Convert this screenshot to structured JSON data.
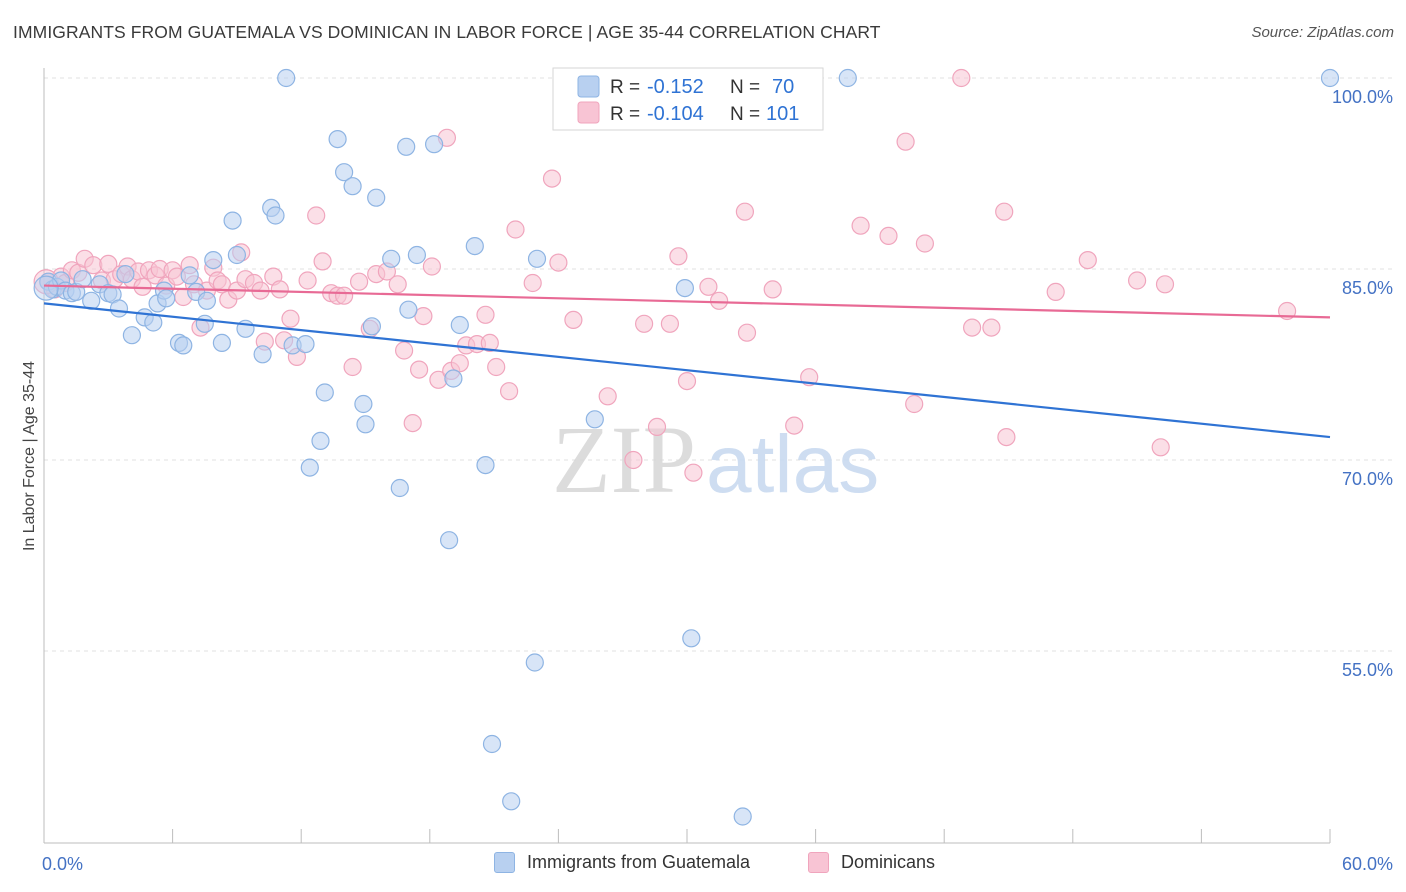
{
  "title": "IMMIGRANTS FROM GUATEMALA VS DOMINICAN IN LABOR FORCE | AGE 35-44 CORRELATION CHART",
  "source": "Source: ZipAtlas.com",
  "watermark": {
    "zip": "ZIP",
    "atlas": "atlas"
  },
  "colors": {
    "blue_fill": "#b8d0f0",
    "blue_stroke": "#8eb4e3",
    "blue_line": "#2f73d4",
    "pink_fill": "#f8c4d4",
    "pink_stroke": "#f0a5bd",
    "pink_line": "#e86a95",
    "axis_label": "#4472c4",
    "grid": "#e0e0e0"
  },
  "stats_legend": [
    {
      "r_label": "R =",
      "r_value": "-0.152",
      "n_label": "N =",
      "n_value": "70"
    },
    {
      "r_label": "R =",
      "r_value": "-0.104",
      "n_label": "N =",
      "n_value": "101"
    }
  ],
  "bottom_legend": [
    "Immigrants from Guatemala",
    "Dominicans"
  ],
  "chart_data": {
    "type": "scatter",
    "xlabel": "",
    "ylabel": "In Labor Force | Age 35-44",
    "xlim": [
      0,
      60
    ],
    "ylim": [
      40,
      103
    ],
    "x_tick_labels": [
      {
        "value": 0,
        "label": "0.0%"
      },
      {
        "value": 60,
        "label": "60.0%"
      }
    ],
    "y_tick_labels": [
      {
        "value": 100,
        "label": "100.0%"
      },
      {
        "value": 85,
        "label": "85.0%"
      },
      {
        "value": 70,
        "label": "70.0%"
      },
      {
        "value": 55,
        "label": "55.0%"
      }
    ],
    "x_minor_ticks": [
      6,
      12,
      18,
      24,
      30,
      36,
      42,
      48,
      54,
      60
    ],
    "grid": true,
    "series": [
      {
        "name": "Immigrants from Guatemala",
        "trend": [
          [
            0,
            82.3
          ],
          [
            60,
            71.8
          ]
        ],
        "points": [
          [
            0.2,
            84
          ],
          [
            0.4,
            83.4
          ],
          [
            0.6,
            83.6
          ],
          [
            0.8,
            84.1
          ],
          [
            1.0,
            83.3
          ],
          [
            1.3,
            83.1
          ],
          [
            1.5,
            83.2
          ],
          [
            1.8,
            84.2
          ],
          [
            2.2,
            82.5
          ],
          [
            2.6,
            83.8
          ],
          [
            3.0,
            83.1
          ],
          [
            3.2,
            83.0
          ],
          [
            3.5,
            81.9
          ],
          [
            3.8,
            84.6
          ],
          [
            4.1,
            79.8
          ],
          [
            4.7,
            81.2
          ],
          [
            5.1,
            80.8
          ],
          [
            5.3,
            82.3
          ],
          [
            5.6,
            83.3
          ],
          [
            5.7,
            82.7
          ],
          [
            6.3,
            79.2
          ],
          [
            6.5,
            79.0
          ],
          [
            6.8,
            84.5
          ],
          [
            7.1,
            83.2
          ],
          [
            7.5,
            80.7
          ],
          [
            7.6,
            82.5
          ],
          [
            7.9,
            85.7
          ],
          [
            8.3,
            79.2
          ],
          [
            8.8,
            88.8
          ],
          [
            9.0,
            86.1
          ],
          [
            9.4,
            80.3
          ],
          [
            10.2,
            78.3
          ],
          [
            10.6,
            89.8
          ],
          [
            10.8,
            89.2
          ],
          [
            11.3,
            100
          ],
          [
            11.6,
            79.0
          ],
          [
            12.2,
            79.1
          ],
          [
            12.4,
            69.4
          ],
          [
            12.9,
            71.5
          ],
          [
            13.1,
            75.3
          ],
          [
            13.7,
            95.2
          ],
          [
            14.0,
            92.6
          ],
          [
            14.4,
            91.5
          ],
          [
            14.9,
            74.4
          ],
          [
            15.0,
            72.8
          ],
          [
            15.3,
            80.5
          ],
          [
            15.5,
            90.6
          ],
          [
            16.2,
            85.8
          ],
          [
            16.6,
            67.8
          ],
          [
            16.9,
            94.6
          ],
          [
            17.0,
            81.8
          ],
          [
            17.4,
            86.1
          ],
          [
            18.2,
            94.8
          ],
          [
            18.9,
            63.7
          ],
          [
            19.1,
            76.4
          ],
          [
            19.4,
            80.6
          ],
          [
            20.1,
            86.8
          ],
          [
            20.6,
            69.6
          ],
          [
            20.9,
            47.7
          ],
          [
            21.8,
            43.2
          ],
          [
            22.9,
            54.1
          ],
          [
            23.0,
            85.8
          ],
          [
            25.7,
            73.2
          ],
          [
            29.9,
            83.5
          ],
          [
            30.2,
            56.0
          ],
          [
            32.6,
            42.0
          ],
          [
            37.5,
            100
          ],
          [
            60.0,
            100
          ]
        ]
      },
      {
        "name": "Dominicans",
        "trend": [
          [
            0,
            83.7
          ],
          [
            60,
            81.2
          ]
        ],
        "points": [
          [
            0.2,
            84.0
          ],
          [
            0.5,
            83.4
          ],
          [
            0.8,
            84.4
          ],
          [
            1.0,
            83.9
          ],
          [
            1.3,
            84.9
          ],
          [
            1.6,
            84.7
          ],
          [
            1.9,
            85.8
          ],
          [
            2.3,
            85.3
          ],
          [
            2.7,
            84.1
          ],
          [
            3.0,
            85.4
          ],
          [
            3.3,
            84.2
          ],
          [
            3.6,
            84.6
          ],
          [
            3.9,
            85.2
          ],
          [
            4.1,
            84.2
          ],
          [
            4.4,
            84.8
          ],
          [
            4.6,
            83.6
          ],
          [
            4.9,
            84.9
          ],
          [
            5.2,
            84.5
          ],
          [
            5.4,
            85.0
          ],
          [
            5.7,
            83.7
          ],
          [
            6.0,
            84.9
          ],
          [
            6.2,
            84.4
          ],
          [
            6.5,
            82.8
          ],
          [
            6.8,
            85.3
          ],
          [
            7.0,
            83.8
          ],
          [
            7.3,
            80.4
          ],
          [
            7.6,
            83.3
          ],
          [
            7.9,
            85.1
          ],
          [
            8.1,
            84.1
          ],
          [
            8.3,
            83.8
          ],
          [
            8.6,
            82.6
          ],
          [
            9.0,
            83.3
          ],
          [
            9.2,
            86.3
          ],
          [
            9.4,
            84.2
          ],
          [
            9.8,
            83.9
          ],
          [
            10.1,
            83.3
          ],
          [
            10.3,
            79.3
          ],
          [
            10.7,
            84.4
          ],
          [
            11.0,
            83.4
          ],
          [
            11.2,
            79.4
          ],
          [
            11.5,
            81.1
          ],
          [
            11.8,
            78.1
          ],
          [
            12.3,
            84.1
          ],
          [
            12.7,
            89.2
          ],
          [
            13.0,
            85.6
          ],
          [
            13.4,
            83.1
          ],
          [
            13.7,
            82.9
          ],
          [
            14.0,
            82.9
          ],
          [
            14.4,
            77.3
          ],
          [
            14.7,
            84.0
          ],
          [
            15.2,
            80.3
          ],
          [
            15.5,
            84.6
          ],
          [
            16.0,
            84.8
          ],
          [
            16.5,
            83.8
          ],
          [
            16.8,
            78.6
          ],
          [
            17.2,
            72.9
          ],
          [
            17.5,
            77.1
          ],
          [
            17.7,
            81.3
          ],
          [
            18.1,
            85.2
          ],
          [
            18.4,
            76.3
          ],
          [
            18.8,
            95.3
          ],
          [
            19.0,
            77.0
          ],
          [
            19.4,
            77.6
          ],
          [
            19.7,
            79.0
          ],
          [
            20.2,
            79.1
          ],
          [
            20.6,
            81.4
          ],
          [
            20.8,
            79.2
          ],
          [
            21.1,
            77.3
          ],
          [
            21.7,
            75.4
          ],
          [
            22.0,
            88.1
          ],
          [
            22.8,
            83.9
          ],
          [
            23.7,
            92.1
          ],
          [
            24.0,
            85.5
          ],
          [
            24.7,
            81.0
          ],
          [
            26.3,
            75.0
          ],
          [
            27.5,
            70.0
          ],
          [
            28.0,
            80.7
          ],
          [
            28.6,
            72.6
          ],
          [
            29.2,
            80.7
          ],
          [
            29.6,
            86.0
          ],
          [
            30.0,
            76.2
          ],
          [
            30.3,
            69.0
          ],
          [
            31.0,
            83.6
          ],
          [
            31.5,
            82.5
          ],
          [
            32.7,
            89.5
          ],
          [
            32.8,
            80.0
          ],
          [
            34.0,
            83.4
          ],
          [
            35.0,
            72.7
          ],
          [
            35.7,
            76.5
          ],
          [
            38.1,
            88.4
          ],
          [
            39.4,
            87.6
          ],
          [
            40.2,
            95.0
          ],
          [
            40.6,
            74.4
          ],
          [
            41.1,
            87.0
          ],
          [
            42.8,
            100
          ],
          [
            43.3,
            80.4
          ],
          [
            44.2,
            80.4
          ],
          [
            44.8,
            89.5
          ],
          [
            44.9,
            71.8
          ],
          [
            47.2,
            83.2
          ],
          [
            48.7,
            85.7
          ],
          [
            51.0,
            84.1
          ],
          [
            52.1,
            71.0
          ],
          [
            52.3,
            83.8
          ],
          [
            58.0,
            81.7
          ]
        ]
      }
    ]
  }
}
